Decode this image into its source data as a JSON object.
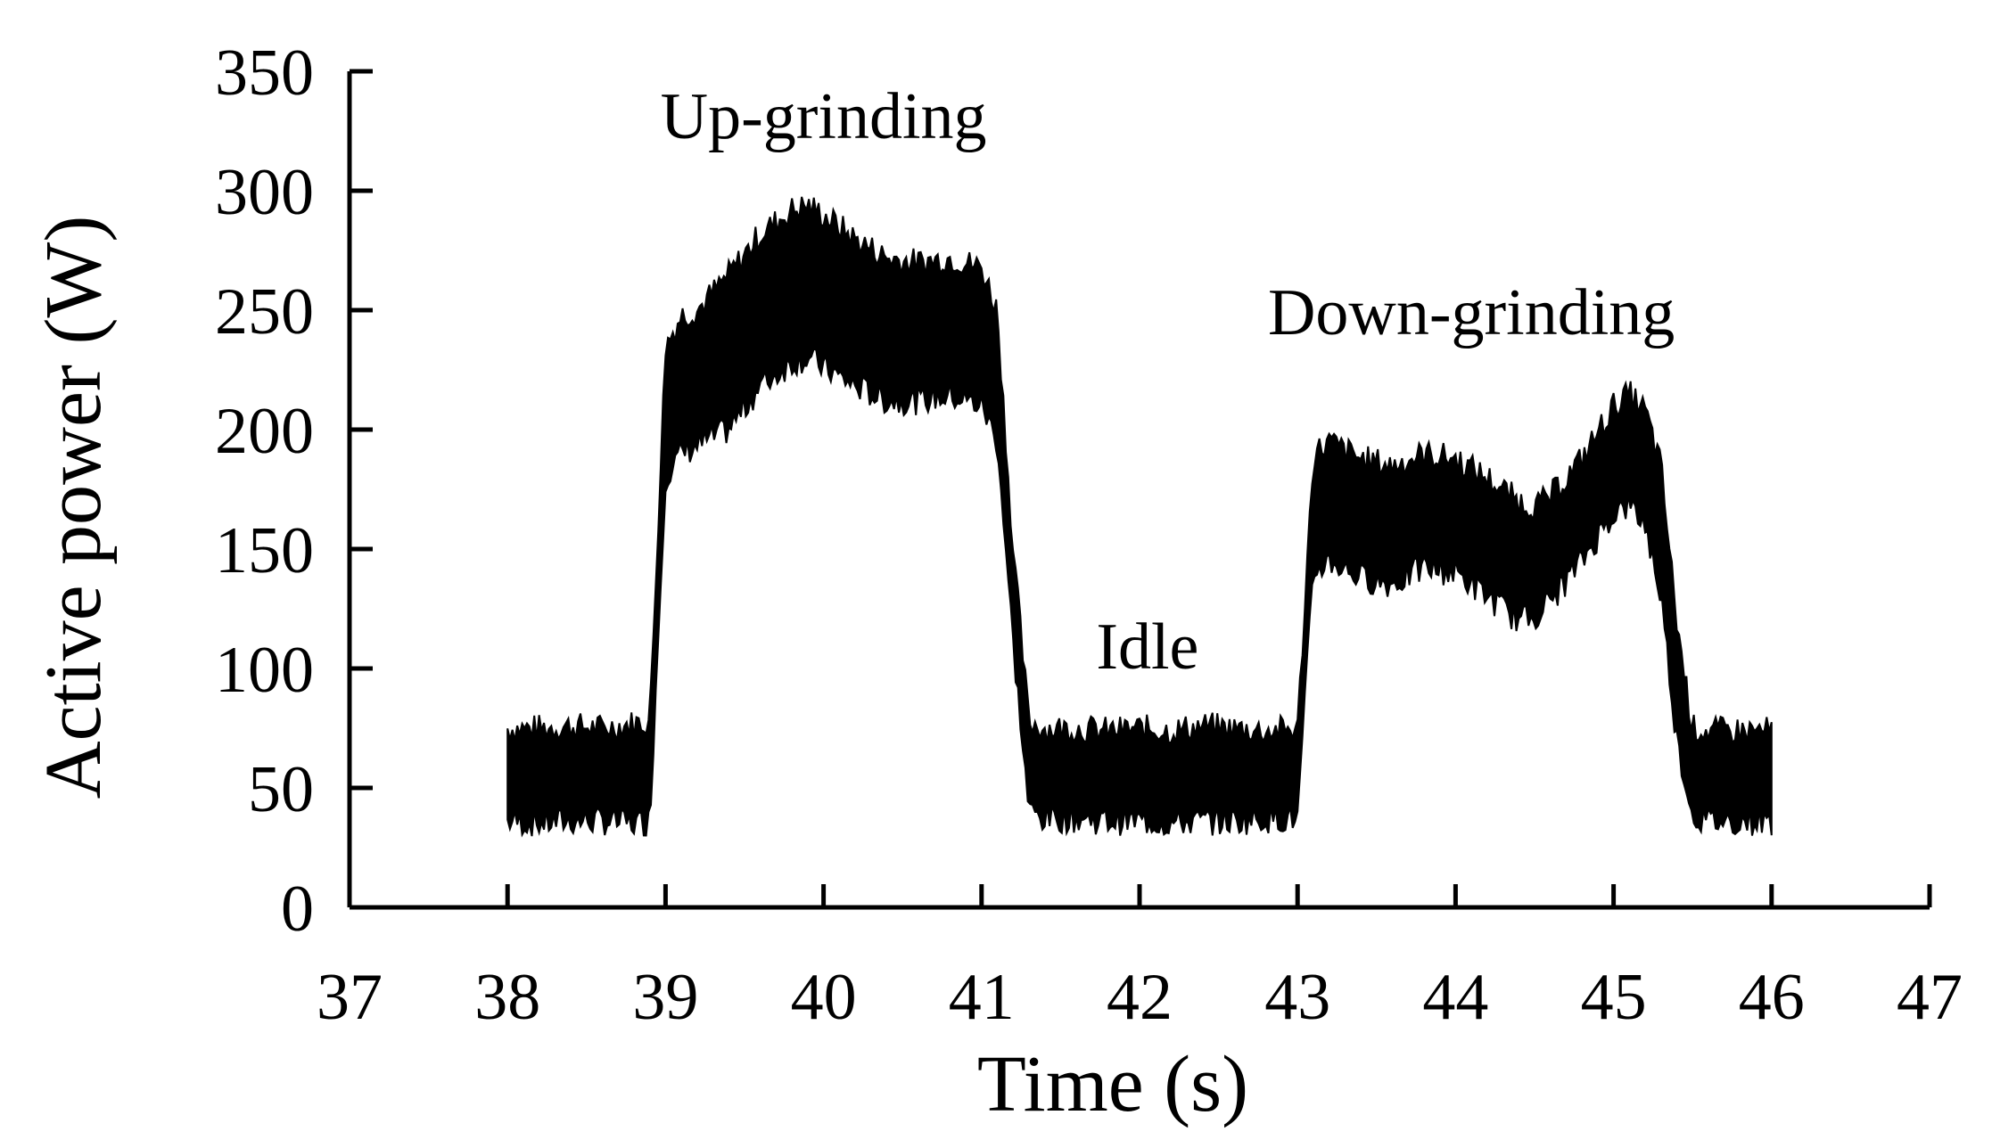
{
  "chart_data": {
    "type": "line",
    "title": "",
    "xlabel": "Time (s)",
    "ylabel": "Active power (W)",
    "xlim": [
      37,
      47
    ],
    "ylim": [
      0,
      350
    ],
    "xticks": [
      37,
      38,
      39,
      40,
      41,
      42,
      43,
      44,
      45,
      46,
      47
    ],
    "yticks": [
      0,
      50,
      100,
      150,
      200,
      250,
      300,
      350
    ],
    "grid": false,
    "legend": "none",
    "line_color": "#000000",
    "annotations": [
      {
        "text": "Up-grinding",
        "x": 40.0,
        "y": 322
      },
      {
        "text": "Idle",
        "x": 42.05,
        "y": 100
      },
      {
        "text": "Down-grinding",
        "x": 44.1,
        "y": 240
      }
    ],
    "series": [
      {
        "x": [
          38.0,
          38.2,
          38.4,
          38.6,
          38.8,
          38.9,
          39.0,
          39.1,
          39.2,
          39.4,
          39.6,
          39.8,
          39.9,
          40.0,
          40.2,
          40.4,
          40.6,
          40.8,
          41.0,
          41.1,
          41.2,
          41.3,
          41.4,
          41.6,
          41.8,
          42.0,
          42.2,
          42.4,
          42.6,
          42.8,
          43.0,
          43.1,
          43.2,
          43.4,
          43.6,
          43.8,
          44.0,
          44.2,
          44.4,
          44.5,
          44.6,
          44.8,
          45.0,
          45.1,
          45.2,
          45.3,
          45.4,
          45.5,
          45.6,
          45.8,
          46.0
        ],
        "upper": [
          75,
          75,
          76,
          75,
          77,
          78,
          235,
          248,
          250,
          265,
          282,
          292,
          294,
          290,
          280,
          272,
          270,
          272,
          268,
          250,
          150,
          78,
          75,
          75,
          74,
          75,
          74,
          76,
          75,
          74,
          75,
          190,
          195,
          188,
          185,
          190,
          188,
          180,
          170,
          168,
          172,
          188,
          210,
          215,
          208,
          185,
          120,
          75,
          74,
          74,
          74
        ],
        "lower": [
          36,
          35,
          36,
          36,
          35,
          36,
          180,
          190,
          193,
          200,
          218,
          228,
          230,
          226,
          218,
          212,
          212,
          214,
          210,
          195,
          110,
          40,
          37,
          37,
          36,
          36,
          35,
          36,
          36,
          37,
          37,
          140,
          145,
          138,
          135,
          142,
          140,
          130,
          120,
          122,
          128,
          145,
          165,
          168,
          160,
          130,
          70,
          38,
          36,
          36,
          36
        ]
      }
    ]
  }
}
